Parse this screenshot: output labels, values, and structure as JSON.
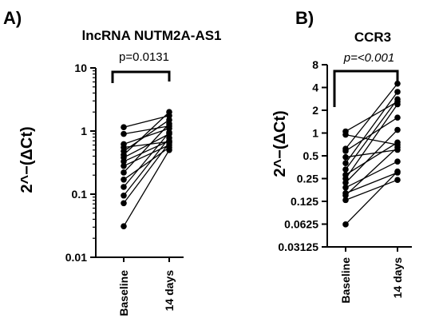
{
  "chart_data": [
    {
      "type": "scatter",
      "panel_label": "A)",
      "title": "lncRNA NUTM2A-AS1",
      "ylabel": "2^−(ΔCt)",
      "yscale": "log10",
      "ylim": [
        0.01,
        10
      ],
      "yticks": [
        10,
        1,
        0.1,
        0.01
      ],
      "ytick_labels": [
        "10",
        "1",
        "0.1",
        "0.01"
      ],
      "categories": [
        "Baseline",
        "14 days"
      ],
      "paired": true,
      "annotation": "p=0.0131",
      "annotation_italic": false,
      "pairs": [
        [
          1.15,
          1.75
        ],
        [
          0.9,
          1.2
        ],
        [
          0.62,
          1.1
        ],
        [
          0.55,
          0.68
        ],
        [
          0.48,
          1.5
        ],
        [
          0.42,
          2.0
        ],
        [
          0.38,
          0.9
        ],
        [
          0.33,
          0.7
        ],
        [
          0.28,
          0.6
        ],
        [
          0.22,
          1.3
        ],
        [
          0.17,
          0.55
        ],
        [
          0.13,
          0.95
        ],
        [
          0.095,
          0.78
        ],
        [
          0.072,
          0.65
        ],
        [
          0.031,
          0.5
        ]
      ]
    },
    {
      "type": "scatter",
      "panel_label": "B)",
      "title": "CCR3",
      "ylabel": "2^−(ΔCt)",
      "yscale": "log2",
      "ylim": [
        0.03125,
        8
      ],
      "yticks": [
        8,
        4,
        2,
        1,
        0.5,
        0.25,
        0.125,
        0.0625,
        0.03125
      ],
      "ytick_labels": [
        "8",
        "4",
        "2",
        "1",
        "0.5",
        "0.25",
        "0.125",
        "0.0625",
        "0.03125"
      ],
      "categories": [
        "Baseline",
        "14 days"
      ],
      "paired": true,
      "annotation": "p=<0.001",
      "annotation_italic": true,
      "pairs": [
        [
          1.05,
          2.6
        ],
        [
          0.95,
          0.7
        ],
        [
          0.62,
          4.5
        ],
        [
          0.58,
          1.6
        ],
        [
          0.48,
          0.6
        ],
        [
          0.4,
          3.5
        ],
        [
          0.33,
          2.8
        ],
        [
          0.28,
          0.75
        ],
        [
          0.25,
          2.4
        ],
        [
          0.22,
          1.1
        ],
        [
          0.19,
          0.42
        ],
        [
          0.16,
          0.3
        ],
        [
          0.15,
          0.65
        ],
        [
          0.13,
          0.24
        ],
        [
          0.062,
          0.31
        ]
      ]
    }
  ]
}
